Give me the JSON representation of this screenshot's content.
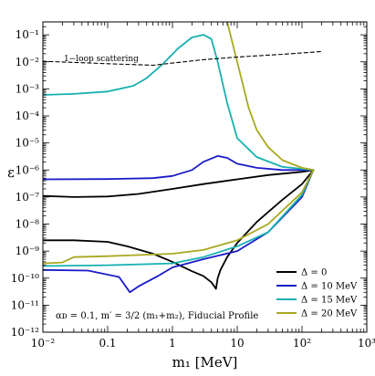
{
  "chart_data": {
    "type": "line",
    "title": "",
    "xlabel": "m₁ [MeV]",
    "ylabel": "ε",
    "xscale": "log",
    "yscale": "log",
    "xlim": [
      0.01,
      1000
    ],
    "ylim": [
      1e-12,
      0.3
    ],
    "xticks": [
      "10⁻²",
      "0.1",
      "1",
      "10",
      "10²",
      "10³"
    ],
    "yticks": [
      "10⁻¹²",
      "10⁻¹¹",
      "10⁻¹⁰",
      "10⁻⁹",
      "10⁻⁸",
      "10⁻⁷",
      "10⁻⁶",
      "10⁻⁵",
      "10⁻⁴",
      "10⁻³",
      "10⁻²",
      "10⁻¹"
    ],
    "grid": false,
    "legend_position": "bottom-right",
    "annotations": {
      "scattering": "1−loop scattering",
      "params": "αᴅ = 0.1, m′ = 3/2 (m₁+m₂), Fiducial Profile"
    },
    "series": [
      {
        "name": "Δ = 0",
        "color": "#000000",
        "segments": [
          [
            [
              0.01,
              1.1e-07
            ],
            [
              0.03,
              1e-07
            ],
            [
              0.1,
              1.05e-07
            ],
            [
              0.3,
              1.3e-07
            ],
            [
              1,
              2e-07
            ],
            [
              3,
              3e-07
            ],
            [
              10,
              4.5e-07
            ],
            [
              30,
              6.5e-07
            ],
            [
              100,
              8.5e-07
            ],
            [
              150,
              1e-06
            ]
          ],
          [
            [
              0.01,
              2.5e-09
            ],
            [
              0.03,
              2.5e-09
            ],
            [
              0.1,
              2.2e-09
            ],
            [
              0.2,
              1.5e-09
            ],
            [
              0.5,
              8e-10
            ],
            [
              1,
              4e-10
            ],
            [
              2,
              1.8e-10
            ],
            [
              3,
              1.2e-10
            ],
            [
              4,
              7e-11
            ],
            [
              4.7,
              4e-11
            ],
            [
              5,
              1e-10
            ],
            [
              5.5,
              2e-10
            ],
            [
              7,
              6e-10
            ],
            [
              10,
              2e-09
            ],
            [
              20,
              1.2e-08
            ],
            [
              50,
              8e-08
            ],
            [
              100,
              3e-07
            ],
            [
              150,
              1e-06
            ]
          ]
        ]
      },
      {
        "name": "Δ = 10 MeV",
        "color": "#1a1ac8",
        "segments": [
          [
            [
              0.01,
              4.5e-07
            ],
            [
              0.1,
              4.6e-07
            ],
            [
              0.5,
              5e-07
            ],
            [
              1,
              6e-07
            ],
            [
              2,
              1e-06
            ],
            [
              3,
              2e-06
            ],
            [
              5,
              3.3e-06
            ],
            [
              7,
              2.8e-06
            ],
            [
              10,
              1.7e-06
            ],
            [
              20,
              1.2e-06
            ],
            [
              50,
              1e-06
            ],
            [
              150,
              1e-06
            ]
          ],
          [
            [
              0.01,
              2e-10
            ],
            [
              0.05,
              1.9e-10
            ],
            [
              0.15,
              1.1e-10
            ],
            [
              0.22,
              3e-11
            ],
            [
              0.3,
              5e-11
            ],
            [
              0.6,
              1.2e-10
            ],
            [
              1,
              2.5e-10
            ],
            [
              3,
              5e-10
            ],
            [
              10,
              1e-09
            ],
            [
              30,
              5e-09
            ],
            [
              100,
              1e-07
            ],
            [
              150,
              1e-06
            ]
          ]
        ]
      },
      {
        "name": "Δ = 15 MeV",
        "color": "#17b0b0",
        "segments": [
          [
            [
              0.01,
              0.0006
            ],
            [
              0.03,
              0.00065
            ],
            [
              0.1,
              0.0008
            ],
            [
              0.25,
              0.0013
            ],
            [
              0.4,
              0.0025
            ],
            [
              0.7,
              0.008
            ],
            [
              1.2,
              0.03
            ],
            [
              2,
              0.08
            ],
            [
              3,
              0.1
            ],
            [
              4,
              0.07
            ],
            [
              5,
              0.01
            ],
            [
              7,
              0.0003
            ],
            [
              10,
              1.5e-05
            ],
            [
              20,
              3e-06
            ],
            [
              50,
              1.3e-06
            ],
            [
              150,
              1e-06
            ]
          ],
          [
            [
              0.01,
              2.8e-10
            ],
            [
              0.1,
              3e-10
            ],
            [
              1,
              3.5e-10
            ],
            [
              3,
              6e-10
            ],
            [
              10,
              1.5e-09
            ],
            [
              30,
              5e-09
            ],
            [
              100,
              1.2e-07
            ],
            [
              150,
              1e-06
            ]
          ]
        ]
      },
      {
        "name": "Δ = 20 MeV",
        "color": "#a8a820",
        "segments": [
          [
            [
              7,
              0.3
            ],
            [
              10,
              0.01
            ],
            [
              15,
              0.0002
            ],
            [
              20,
              3e-05
            ],
            [
              30,
              7e-06
            ],
            [
              50,
              2.3e-06
            ],
            [
              100,
              1.2e-06
            ],
            [
              150,
              1e-06
            ]
          ],
          [
            [
              0.01,
              3.5e-10
            ],
            [
              0.02,
              3.8e-10
            ],
            [
              0.03,
              6e-10
            ],
            [
              0.1,
              6.5e-10
            ],
            [
              1,
              8e-10
            ],
            [
              3,
              1.1e-09
            ],
            [
              10,
              2.5e-09
            ],
            [
              30,
              1e-08
            ],
            [
              100,
              1.5e-07
            ],
            [
              150,
              1e-06
            ]
          ]
        ]
      },
      {
        "name": "1-loop scattering",
        "color": "#000000",
        "dashed": true,
        "legend": false,
        "segments": [
          [
            [
              0.01,
              0.0105
            ],
            [
              0.1,
              0.0085
            ],
            [
              0.5,
              0.0075
            ],
            [
              1,
              0.009
            ],
            [
              3,
              0.012
            ],
            [
              10,
              0.015
            ],
            [
              50,
              0.019
            ],
            [
              200,
              0.024
            ]
          ]
        ]
      }
    ]
  }
}
